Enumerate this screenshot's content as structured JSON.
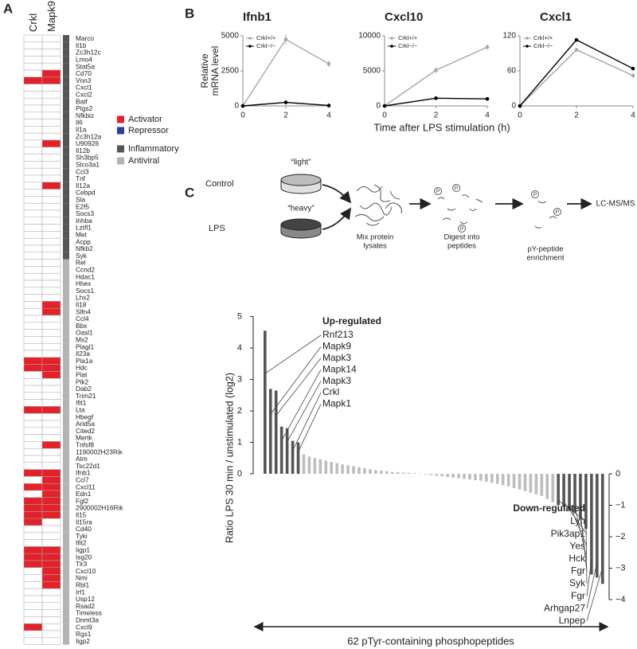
{
  "panels": [
    "A",
    "B",
    "C"
  ],
  "diagram": {
    "control": "Control",
    "lps": "LPS",
    "light": "“light”",
    "heavy": "“heavy”",
    "steps": [
      [
        "Mix protein",
        "lysates"
      ],
      [
        "Digest into",
        "peptides"
      ],
      [
        "pY-peptide",
        "enrichment"
      ]
    ],
    "phospho": "P",
    "output": "LC-MS/MS"
  },
  "chart_data": [
    {
      "type": "heatmap",
      "columns": [
        "Crkl",
        "Mapk9"
      ],
      "legend": [
        {
          "name": "Activator",
          "color": "#e3212b"
        },
        {
          "name": "Repressor",
          "color": "#2b3c9b"
        }
      ],
      "groups": [
        {
          "name": "Inflammatory",
          "color": "#555555",
          "rows": [
            "Marco",
            "Il1b",
            "Zc3h12c",
            "Lmo4",
            "Stat5a",
            "Cd70",
            "Vnn3",
            "Cxcl1",
            "Cxcl2",
            "Batf",
            "Ptgs2",
            "Nfkbiz",
            "Il6",
            "Il1a",
            "Zc3h12a",
            "U90926",
            "Il12b",
            "Sh3bp5",
            "Slco3a1",
            "Ccl3",
            "Tnf",
            "Il12a",
            "Cebpd",
            "Sla",
            "E2f5",
            "Socs3",
            "Inhba",
            "Lztfl1",
            "Met",
            "Acpp",
            "Nfkb2",
            "Syk"
          ],
          "values": [
            [
              0,
              0
            ],
            [
              0,
              0
            ],
            [
              0,
              0
            ],
            [
              0,
              0
            ],
            [
              0,
              0
            ],
            [
              0,
              1
            ],
            [
              1,
              1
            ],
            [
              0,
              0
            ],
            [
              0,
              0
            ],
            [
              0,
              0
            ],
            [
              0,
              0
            ],
            [
              0,
              0
            ],
            [
              0,
              0
            ],
            [
              0,
              0
            ],
            [
              0,
              0
            ],
            [
              0,
              1
            ],
            [
              0,
              0
            ],
            [
              0,
              0
            ],
            [
              0,
              0
            ],
            [
              0,
              0
            ],
            [
              0,
              0
            ],
            [
              0,
              1
            ],
            [
              0,
              0
            ],
            [
              0,
              0
            ],
            [
              0,
              0
            ],
            [
              0,
              0
            ],
            [
              0,
              0
            ],
            [
              0,
              0
            ],
            [
              0,
              0
            ],
            [
              0,
              0
            ],
            [
              0,
              0
            ],
            [
              0,
              0
            ]
          ]
        },
        {
          "name": "Antiviral",
          "color": "#b3b3b3",
          "rows": [
            "Rel",
            "Ccnd2",
            "Hdac1",
            "Hhex",
            "Socs1",
            "Lhx2",
            "Il18",
            "Slfn4",
            "Ccl4",
            "Bbx",
            "Oasl1",
            "Mx2",
            "Plagl1",
            "Il23a",
            "Pla1a",
            "Hdc",
            "Plat",
            "Plk2",
            "Dab2",
            "Trim21",
            "Ifit1",
            "Lta",
            "Hbegf",
            "Arid5a",
            "Cited2",
            "Mertk",
            "Tnfsf8",
            "1190002H23Rik",
            "Atm",
            "Tsc22d1",
            "Ifnb1",
            "Ccl7",
            "Cxcl11",
            "Edn1",
            "Fgl2",
            "2900002H16Rik",
            "Il15",
            "Il15ra",
            "Cd40",
            "Tyki",
            "Ifit2",
            "Iigp1",
            "Isg20",
            "Tlr3",
            "Cxcl10",
            "Nmi",
            "Rbl1",
            "Irf1",
            "Usp12",
            "Rsad2",
            "Timeless",
            "Dnmt3a",
            "Cxcl9",
            "Rgs1",
            "Iigp2"
          ],
          "values": [
            [
              0,
              0
            ],
            [
              0,
              0
            ],
            [
              0,
              0
            ],
            [
              0,
              0
            ],
            [
              0,
              0
            ],
            [
              0,
              0
            ],
            [
              0,
              1
            ],
            [
              0,
              1
            ],
            [
              0,
              0
            ],
            [
              0,
              0
            ],
            [
              0,
              0
            ],
            [
              0,
              0
            ],
            [
              0,
              0
            ],
            [
              0,
              0
            ],
            [
              1,
              1
            ],
            [
              1,
              1
            ],
            [
              0,
              1
            ],
            [
              0,
              0
            ],
            [
              0,
              0
            ],
            [
              0,
              0
            ],
            [
              0,
              0
            ],
            [
              1,
              1
            ],
            [
              0,
              0
            ],
            [
              0,
              0
            ],
            [
              0,
              0
            ],
            [
              0,
              0
            ],
            [
              0,
              1
            ],
            [
              0,
              0
            ],
            [
              0,
              0
            ],
            [
              0,
              0
            ],
            [
              1,
              1
            ],
            [
              0,
              1
            ],
            [
              1,
              1
            ],
            [
              0,
              1
            ],
            [
              1,
              1
            ],
            [
              1,
              1
            ],
            [
              1,
              1
            ],
            [
              1,
              0
            ],
            [
              0,
              0
            ],
            [
              0,
              0
            ],
            [
              0,
              0
            ],
            [
              1,
              1
            ],
            [
              1,
              1
            ],
            [
              1,
              1
            ],
            [
              0,
              1
            ],
            [
              0,
              1
            ],
            [
              0,
              1
            ],
            [
              0,
              0
            ],
            [
              0,
              0
            ],
            [
              0,
              0
            ],
            [
              0,
              0
            ],
            [
              0,
              0
            ],
            [
              1,
              0
            ],
            [
              0,
              0
            ],
            [
              0,
              0
            ]
          ]
        }
      ]
    },
    {
      "type": "line",
      "title": "Ifnb1",
      "x": [
        0,
        2,
        4
      ],
      "xlim": [
        0,
        4
      ],
      "xticks": [
        0,
        2,
        4
      ],
      "ylim": [
        0,
        5000
      ],
      "yticks": [
        0,
        2500,
        5000
      ],
      "y_label": [
        "Relative",
        "mRNA level"
      ],
      "series": [
        {
          "name": "Crkl+/+",
          "color": "#a6a6a6",
          "values": [
            0,
            4750,
            3000
          ],
          "errors": [
            0,
            350,
            220
          ]
        },
        {
          "name": "Crkl−/−",
          "color": "#000000",
          "values": [
            0,
            250,
            30
          ],
          "errors": [
            0,
            0,
            0
          ]
        }
      ]
    },
    {
      "type": "line",
      "title": "Cxcl10",
      "x": [
        0,
        2,
        4
      ],
      "xlim": [
        0,
        4
      ],
      "xticks": [
        0,
        2,
        4
      ],
      "ylim": [
        0,
        10000
      ],
      "yticks": [
        0,
        5000,
        10000
      ],
      "x_label": "Time after LPS stimulation (h)",
      "series": [
        {
          "name": "Crkl+/+",
          "color": "#a6a6a6",
          "values": [
            0,
            5100,
            8400
          ],
          "errors": [
            0,
            400,
            350
          ]
        },
        {
          "name": "Crkl−/−",
          "color": "#000000",
          "values": [
            0,
            1100,
            1000
          ],
          "errors": [
            0,
            0,
            0
          ]
        }
      ]
    },
    {
      "type": "line",
      "title": "Cxcl1",
      "x": [
        0,
        2,
        4
      ],
      "xlim": [
        0,
        4
      ],
      "xticks": [
        0,
        2,
        4
      ],
      "ylim": [
        0,
        120
      ],
      "yticks": [
        0,
        60,
        120
      ],
      "series": [
        {
          "name": "Crkl+/+",
          "color": "#a6a6a6",
          "values": [
            0,
            96,
            52
          ],
          "errors": [
            0,
            3,
            4
          ]
        },
        {
          "name": "Crkl−/−",
          "color": "#000000",
          "values": [
            0,
            113,
            64
          ],
          "errors": [
            0,
            1,
            2
          ]
        }
      ]
    },
    {
      "type": "waterfall",
      "y_label": "Ratio LPS 30 min / unstimulated (log2)",
      "x_annotation": "62 pTyr-containing phosphopeptides",
      "up_label": "Up-regulated",
      "down_label": "Down-regulated",
      "color": "#bdbdbd",
      "highlight_color": "#555555",
      "ylim": [
        -4,
        5
      ],
      "yticks": [
        0,
        1,
        2,
        3,
        4,
        5
      ],
      "y2lim": [
        -4,
        5
      ],
      "y2ticks": [
        0,
        {
          "value": -1,
          "label": "−1"
        },
        {
          "value": -2,
          "label": "−2"
        },
        {
          "value": -3,
          "label": "−3"
        },
        {
          "value": -4,
          "label": "−4"
        }
      ],
      "categories": [
        "Rnf213",
        "Mapk9",
        "Mapk3",
        "Mapk14",
        "Mapk3",
        "Crkl",
        "Mapk1",
        null,
        null,
        null,
        null,
        null,
        null,
        null,
        null,
        null,
        null,
        null,
        null,
        null,
        null,
        null,
        null,
        null,
        null,
        null,
        null,
        null,
        null,
        null,
        null,
        null,
        null,
        null,
        null,
        null,
        null,
        null,
        null,
        null,
        null,
        null,
        null,
        null,
        null,
        null,
        null,
        null,
        null,
        null,
        null,
        null,
        null,
        "Lyn",
        "Pik3ap1",
        "Yes",
        "Hck",
        "Fgr",
        "Syk",
        "Fgr",
        "Arhgap27",
        "Lnpep"
      ],
      "values": [
        4.55,
        2.7,
        2.65,
        1.5,
        1.45,
        1.05,
        1.0,
        0.62,
        0.55,
        0.5,
        0.46,
        0.42,
        0.38,
        0.34,
        0.3,
        0.27,
        0.24,
        0.21,
        0.18,
        0.15,
        0.12,
        0.1,
        0.08,
        0.06,
        0.05,
        0.04,
        0.03,
        0.02,
        0.01,
        -0.02,
        -0.04,
        -0.06,
        -0.08,
        -0.1,
        -0.12,
        -0.14,
        -0.16,
        -0.18,
        -0.2,
        -0.22,
        -0.25,
        -0.28,
        -0.32,
        -0.36,
        -0.4,
        -0.45,
        -0.5,
        -0.55,
        -0.6,
        -0.65,
        -0.7,
        -0.8,
        -0.9,
        -1.0,
        -1.05,
        -1.15,
        -1.25,
        -1.45,
        -1.75,
        -3.2,
        -3.3,
        -3.5
      ]
    }
  ]
}
